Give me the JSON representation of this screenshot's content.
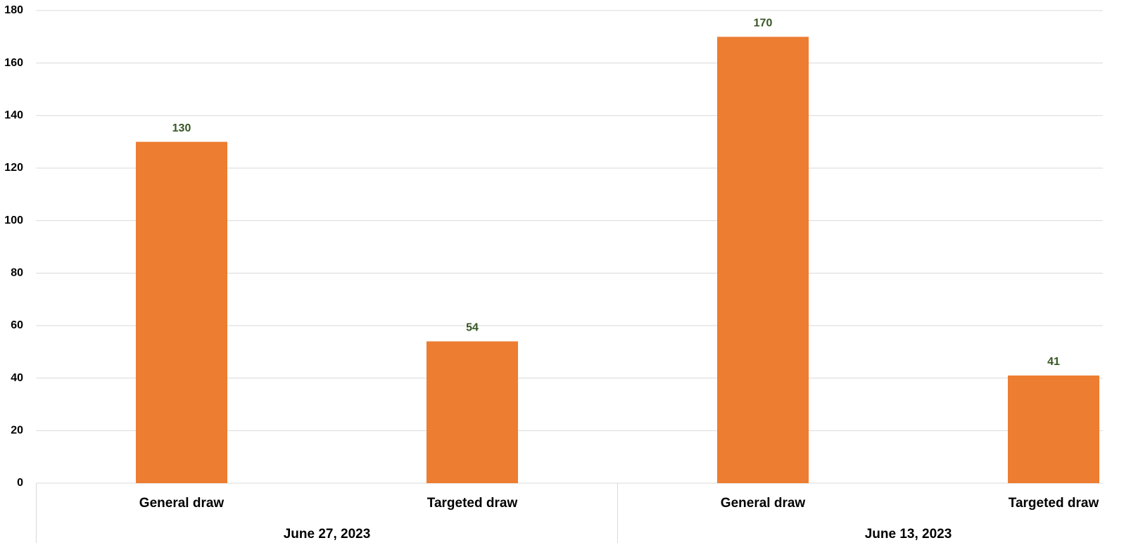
{
  "chart_data": {
    "type": "bar",
    "categories": [
      "General draw",
      "Targeted draw",
      "General draw",
      "Targeted draw"
    ],
    "groups": [
      "June 27, 2023",
      "June 13, 2023"
    ],
    "values": [
      130,
      54,
      170,
      41
    ],
    "color": "#ED7D31",
    "label_color": "#375623",
    "ylim": [
      0,
      180
    ],
    "yticks": [
      0,
      20,
      40,
      60,
      80,
      100,
      120,
      140,
      160,
      180
    ],
    "grid": true
  }
}
